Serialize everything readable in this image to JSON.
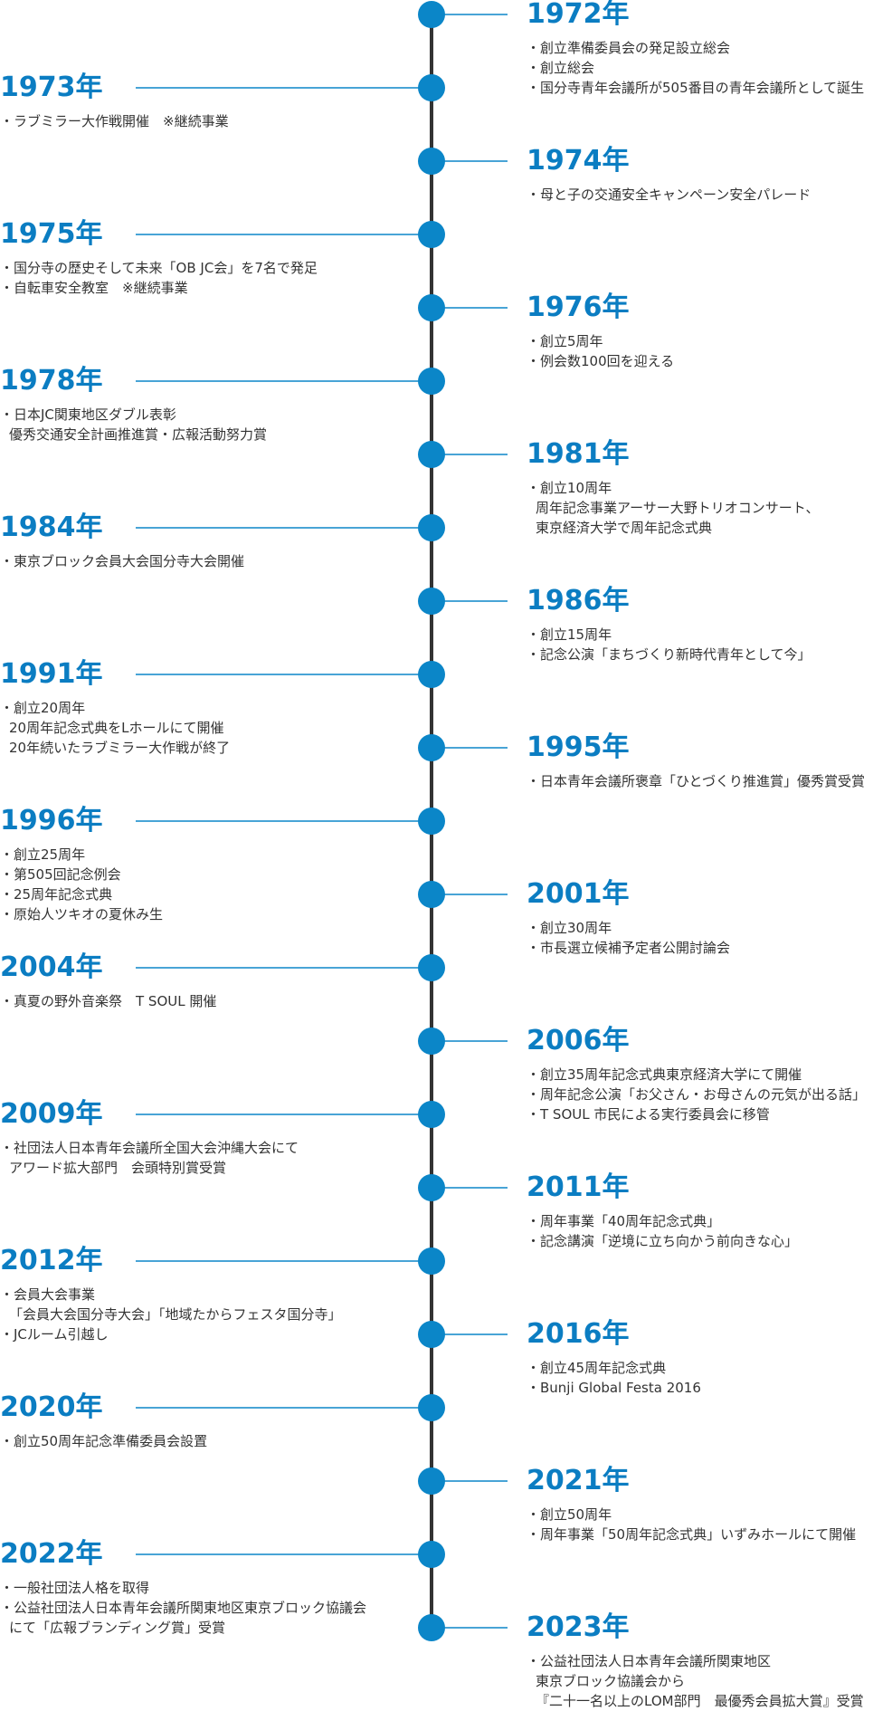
{
  "timeline": [
    {
      "year": "1972年",
      "side": "right",
      "lines": [
        "・創立準備委員会の発足設立総会",
        "・創立総会",
        "・国分寺青年会議所が505番目の青年会議所として誕生"
      ]
    },
    {
      "year": "1973年",
      "side": "left",
      "lines": [
        "・ラブミラー大作戦開催　※継続事業"
      ]
    },
    {
      "year": "1974年",
      "side": "right",
      "lines": [
        "・母と子の交通安全キャンペーン安全パレード"
      ]
    },
    {
      "year": "1975年",
      "side": "left",
      "lines": [
        "・国分寺の歴史そして未来「OB JC会」を7名で発足",
        "・自転車安全教室　※継続事業"
      ]
    },
    {
      "year": "1976年",
      "side": "right",
      "lines": [
        "・創立5周年",
        "・例会数100回を迎える"
      ]
    },
    {
      "year": "1978年",
      "side": "left",
      "lines": [
        "・日本JC関東地区ダブル表彰",
        "優秀交通安全計画推進賞・広報活動努力賞"
      ]
    },
    {
      "year": "1981年",
      "side": "right",
      "lines": [
        "・創立10周年",
        "周年記念事業アーサー大野トリオコンサート、",
        "東京経済大学で周年記念式典"
      ]
    },
    {
      "year": "1984年",
      "side": "left",
      "lines": [
        "・東京ブロック会員大会国分寺大会開催"
      ]
    },
    {
      "year": "1986年",
      "side": "right",
      "lines": [
        "・創立15周年",
        "・記念公演「まちづくり新時代青年として今」"
      ]
    },
    {
      "year": "1991年",
      "side": "left",
      "lines": [
        "・創立20周年",
        "20周年記念式典をLホールにて開催",
        "20年続いたラブミラー大作戦が終了"
      ]
    },
    {
      "year": "1995年",
      "side": "right",
      "lines": [
        "・日本青年会議所褒章「ひとづくり推進賞」優秀賞受賞"
      ]
    },
    {
      "year": "1996年",
      "side": "left",
      "lines": [
        "・創立25周年",
        "・第505回記念例会",
        "・25周年記念式典",
        "・原始人ツキオの夏休み生"
      ]
    },
    {
      "year": "2001年",
      "side": "right",
      "lines": [
        "・創立30周年",
        "・市長選立候補予定者公開討論会"
      ]
    },
    {
      "year": "2004年",
      "side": "left",
      "lines": [
        "・真夏の野外音楽祭　T SOUL 開催"
      ]
    },
    {
      "year": "2006年",
      "side": "right",
      "lines": [
        "・創立35周年記念式典東京経済大学にて開催",
        "・周年記念公演「お父さん・お母さんの元気が出る話」",
        "・T SOUL 市民による実行委員会に移管"
      ]
    },
    {
      "year": "2009年",
      "side": "left",
      "lines": [
        "・社団法人日本青年会議所全国大会沖縄大会にて",
        "アワード拡大部門　会頭特別賞受賞"
      ]
    },
    {
      "year": "2011年",
      "side": "right",
      "lines": [
        "・周年事業「40周年記念式典」",
        "・記念講演「逆境に立ち向かう前向きな心」"
      ]
    },
    {
      "year": "2012年",
      "side": "left",
      "lines": [
        "・会員大会事業",
        "「会員大会国分寺大会」「地域たからフェスタ国分寺」",
        "・JCルーム引越し"
      ]
    },
    {
      "year": "2016年",
      "side": "right",
      "lines": [
        "・創立45周年記念式典",
        "・Bunji Global Festa 2016"
      ]
    },
    {
      "year": "2020年",
      "side": "left",
      "lines": [
        "・創立50周年記念準備委員会設置"
      ]
    },
    {
      "year": "2021年",
      "side": "right",
      "lines": [
        "・創立50周年",
        "・周年事業「50周年記念式典」いずみホールにて開催"
      ]
    },
    {
      "year": "2022年",
      "side": "left",
      "lines": [
        "・一般社団法人格を取得",
        "・公益社団法人日本青年会議所関東地区東京ブロック協議会",
        "にて「広報ブランディング賞」受賞"
      ]
    },
    {
      "year": "2023年",
      "side": "right",
      "lines": [
        "・公益社団法人日本青年会議所関東地区",
        "東京ブロック協議会から",
        "『二十一名以上のLOM部門　最優秀会員拡大賞』受賞"
      ]
    }
  ]
}
